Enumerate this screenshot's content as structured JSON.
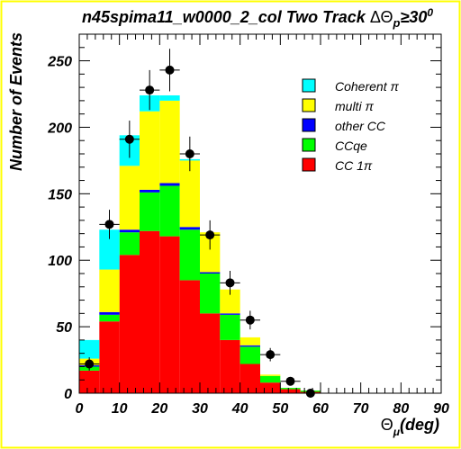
{
  "chart_data": {
    "type": "bar",
    "stacked": true,
    "title": "n45spima11_w0000_2_col Two Track ΔΘp≥30°",
    "title_main": "n45spima11_w0000_2_col Two Track ",
    "title_delta": "ΔΘ",
    "title_sub": "p",
    "title_cond": "≥30",
    "title_deg": "0",
    "xlabel_main": "Θ",
    "xlabel_sub": "μ",
    "xlabel_rest": "(deg)",
    "ylabel": "Number of Events",
    "xlim": [
      0,
      90
    ],
    "ylim": [
      0,
      270
    ],
    "x_ticks": [
      0,
      10,
      20,
      30,
      40,
      50,
      60,
      70,
      80,
      90
    ],
    "y_ticks": [
      0,
      50,
      100,
      150,
      200,
      250
    ],
    "bin_edges": [
      0,
      5,
      10,
      15,
      20,
      25,
      30,
      35,
      40,
      45,
      50,
      55,
      60,
      65,
      70,
      75,
      80,
      85,
      90
    ],
    "series": [
      {
        "name": "CC 1π",
        "color": "#ff0000",
        "values": [
          17,
          54,
          104,
          122,
          118,
          85,
          60,
          40,
          22,
          8,
          3,
          1,
          0,
          0,
          0,
          0,
          0,
          0
        ]
      },
      {
        "name": "CCqe",
        "color": "#00ff00",
        "values": [
          3,
          5,
          17,
          29,
          38,
          38,
          30,
          19,
          13,
          5,
          1,
          1,
          0,
          0,
          0,
          0,
          0,
          0
        ]
      },
      {
        "name": "other CC",
        "color": "#0000ff",
        "values": [
          1,
          2,
          2,
          2,
          2,
          2,
          1,
          1,
          1,
          0,
          0,
          0,
          0,
          0,
          0,
          0,
          0,
          0
        ]
      },
      {
        "name": "multi π",
        "color": "#ffff00",
        "values": [
          5,
          32,
          48,
          59,
          62,
          50,
          30,
          18,
          6,
          1,
          0,
          0,
          0,
          0,
          0,
          0,
          0,
          0
        ]
      },
      {
        "name": "Coherent π",
        "color": "#00ffff",
        "values": [
          14,
          30,
          23,
          12,
          4,
          1,
          0,
          0,
          0,
          0,
          0,
          0,
          0,
          0,
          0,
          0,
          0,
          0
        ]
      }
    ],
    "legend_order": [
      4,
      3,
      2,
      1,
      0
    ],
    "data_points": {
      "x": [
        2.5,
        7.5,
        12.5,
        17.5,
        22.5,
        27.5,
        32.5,
        37.5,
        42.5,
        47.5,
        52.5,
        57.5
      ],
      "y": [
        22,
        127,
        191,
        228,
        243,
        180,
        119,
        83,
        55,
        29,
        9,
        0
      ],
      "err": [
        5,
        11,
        14,
        15,
        16,
        13,
        11,
        9,
        7,
        5,
        3,
        0
      ]
    },
    "legend_position": "top-right",
    "grid": false,
    "frame_color": "#ffff00"
  }
}
